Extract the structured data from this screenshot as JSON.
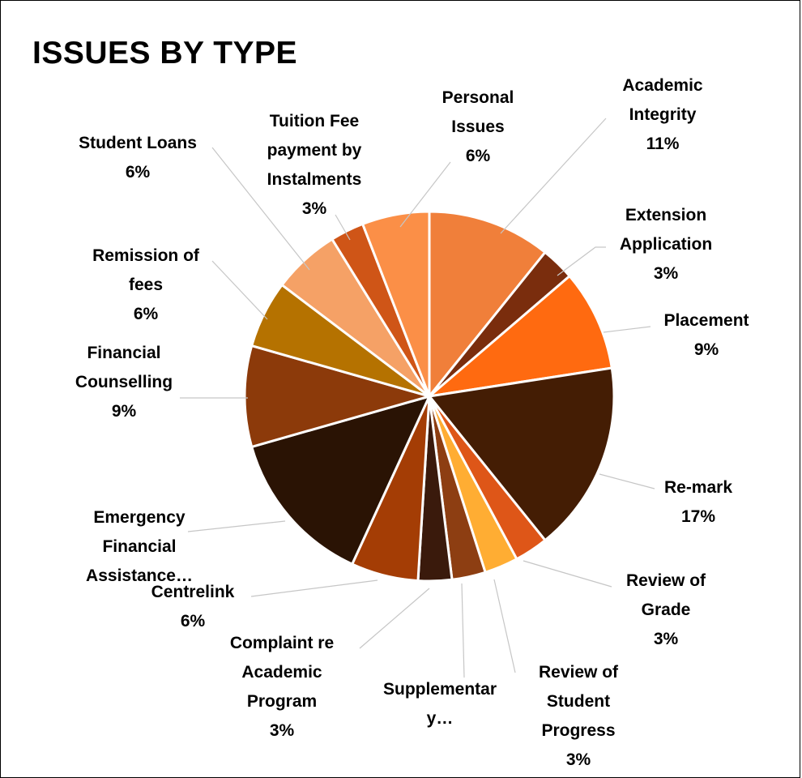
{
  "chart_data": {
    "type": "pie",
    "title": "ISSUES BY TYPE",
    "slices": [
      {
        "label": "Academic Integrity",
        "value": 11,
        "value_label": "11%",
        "color": "#f07f3a"
      },
      {
        "label": "Extension Application",
        "value": 3,
        "value_label": "3%",
        "color": "#7a2d0d"
      },
      {
        "label": "Placement",
        "value": 9,
        "value_label": "9%",
        "color": "#ff6a10"
      },
      {
        "label": "Re-mark",
        "value": 17,
        "value_label": "17%",
        "color": "#441d04"
      },
      {
        "label": "Review of Grade",
        "value": 3,
        "value_label": "3%",
        "color": "#de5618"
      },
      {
        "label": "Review of Student Progress",
        "value": 3,
        "value_label": "3%",
        "color": "#ffad33"
      },
      {
        "label": "Supplementary…",
        "value": 3,
        "value_label": "",
        "color": "#8d3e12"
      },
      {
        "label": "Complaint re Academic Program",
        "value": 3,
        "value_label": "3%",
        "color": "#3a1a0c"
      },
      {
        "label": "Centrelink",
        "value": 6,
        "value_label": "6%",
        "color": "#a43d05"
      },
      {
        "label": "Emergency Financial Assistance…",
        "value": 14,
        "value_label": "",
        "color": "#2a1304"
      },
      {
        "label": "Financial Counselling",
        "value": 9,
        "value_label": "9%",
        "color": "#8c3a0a"
      },
      {
        "label": "Remission of fees",
        "value": 6,
        "value_label": "6%",
        "color": "#b57200"
      },
      {
        "label": "Student Loans",
        "value": 6,
        "value_label": "6%",
        "color": "#f5a166"
      },
      {
        "label": "Tuition Fee payment by Instalments",
        "value": 3,
        "value_label": "3%",
        "color": "#cf5517"
      },
      {
        "label": "Personal Issues",
        "value": 6,
        "value_label": "6%",
        "color": "#fb8f47"
      }
    ]
  }
}
